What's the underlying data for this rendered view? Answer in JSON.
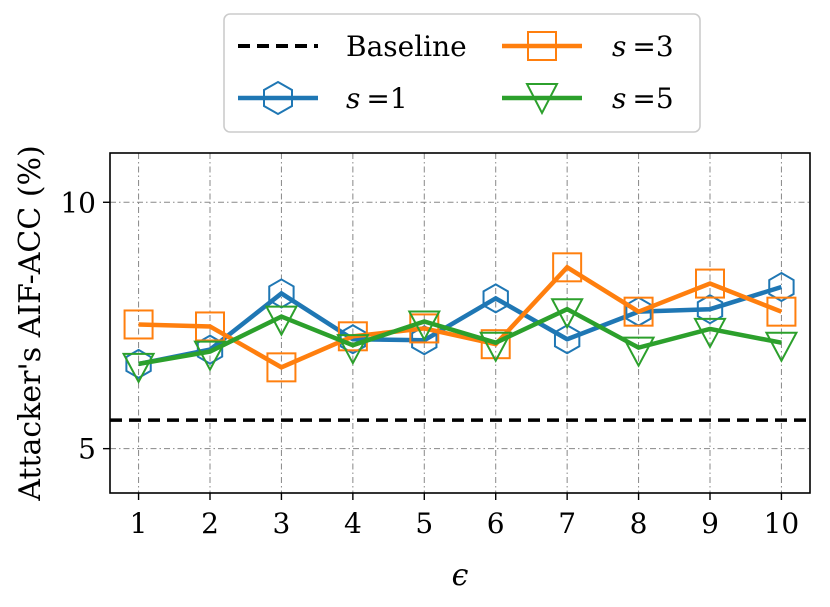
{
  "chart_data": {
    "type": "line",
    "title": "",
    "xlabel": "ϵ",
    "ylabel": "Attacker's AIF-ACC (%)",
    "x": [
      1,
      2,
      3,
      4,
      5,
      6,
      7,
      8,
      9,
      10
    ],
    "xlim": [
      0.6,
      10.4
    ],
    "ylim": [
      4.1,
      11.0
    ],
    "yticks": [
      5,
      10
    ],
    "grid": true,
    "legend_position": "top-center",
    "baseline": {
      "name": "Baseline",
      "value": 5.58,
      "color": "#000000",
      "style": "dashed"
    },
    "series": [
      {
        "name": "s =1",
        "color": "#1f77b4",
        "marker": "hexagon",
        "values": [
          6.72,
          7.01,
          8.15,
          7.22,
          7.2,
          8.05,
          7.22,
          7.78,
          7.83,
          8.28
        ]
      },
      {
        "name": "s =3",
        "color": "#ff7f0e",
        "marker": "square",
        "values": [
          7.52,
          7.48,
          6.65,
          7.28,
          7.44,
          7.12,
          8.68,
          7.78,
          8.35,
          7.78
        ]
      },
      {
        "name": "s =5",
        "color": "#2ca02c",
        "marker": "triangle-down",
        "values": [
          6.72,
          6.97,
          7.68,
          7.1,
          7.58,
          7.15,
          7.83,
          7.05,
          7.43,
          7.15
        ]
      }
    ]
  },
  "legend": {
    "baseline_label": "Baseline",
    "s1_var": "s",
    "s1_rest": "=1",
    "s3_var": "s",
    "s3_rest": "=3",
    "s5_var": "s",
    "s5_rest": "=5"
  }
}
